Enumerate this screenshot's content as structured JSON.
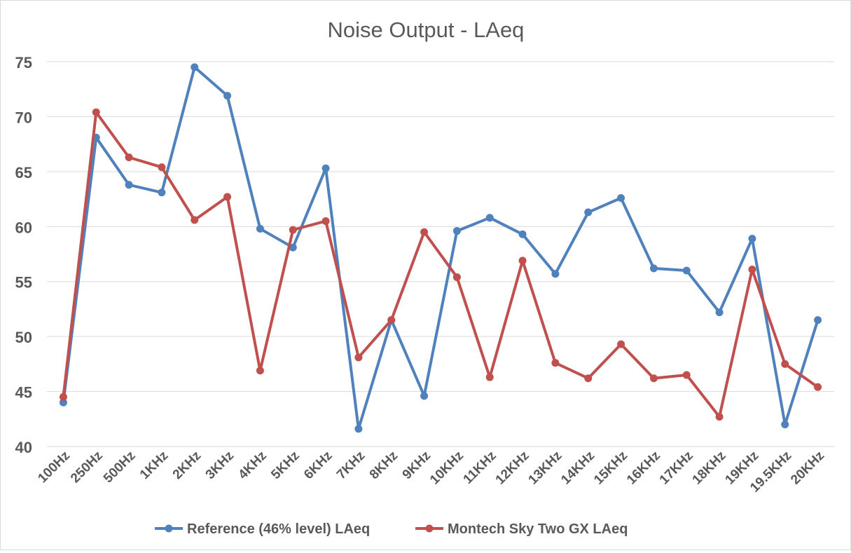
{
  "chart_data": {
    "type": "line",
    "title": "Noise Output - LAeq",
    "xlabel": "",
    "ylabel": "",
    "ylim": [
      40,
      75
    ],
    "yticks": [
      40,
      45,
      50,
      55,
      60,
      65,
      70,
      75
    ],
    "grid": true,
    "legend_position": "bottom",
    "categories": [
      "100Hz",
      "250Hz",
      "500Hz",
      "1KHz",
      "2KHz",
      "3KHz",
      "4KHz",
      "5KHz",
      "6KHz",
      "7KHz",
      "8KHz",
      "9KHz",
      "10KHz",
      "11KHz",
      "12KHz",
      "13KHz",
      "14KHz",
      "15KHz",
      "16KHz",
      "17KHz",
      "18KHz",
      "19KHz",
      "19.5KHz",
      "20KHz"
    ],
    "series": [
      {
        "name": "Reference (46% level) LAeq",
        "color": "#4f81bd",
        "values": [
          44.0,
          68.1,
          63.8,
          63.1,
          74.5,
          71.9,
          59.8,
          58.1,
          65.3,
          41.6,
          51.5,
          44.6,
          59.6,
          60.8,
          59.3,
          55.7,
          61.3,
          62.6,
          56.2,
          56.0,
          52.2,
          58.9,
          42.0,
          51.5
        ]
      },
      {
        "name": "Montech Sky Two GX LAeq",
        "color": "#c0504d",
        "values": [
          44.5,
          70.4,
          66.3,
          65.4,
          60.6,
          62.7,
          46.9,
          59.7,
          60.5,
          48.1,
          51.5,
          59.5,
          55.4,
          46.3,
          56.9,
          47.6,
          46.2,
          49.3,
          46.2,
          46.5,
          42.7,
          56.1,
          47.5,
          45.4
        ]
      }
    ]
  }
}
